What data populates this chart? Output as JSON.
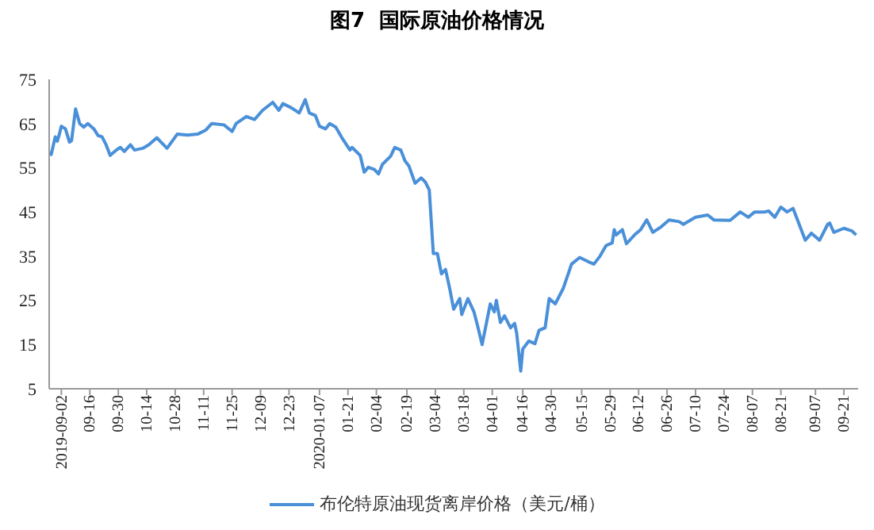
{
  "chart_data": {
    "type": "line",
    "title": "图7  国际原油价格情况",
    "legend": "bottom",
    "marker": "none",
    "line_style": "solid",
    "xlim": [
      "2019-08-27",
      "2020-09-28"
    ],
    "xticks": [
      {
        "value": "2019-09-02",
        "label": "2019-09-02"
      },
      {
        "value": "2019-09-16",
        "label": "09-16"
      },
      {
        "value": "2019-09-30",
        "label": "09-30"
      },
      {
        "value": "2019-10-14",
        "label": "10-14"
      },
      {
        "value": "2019-10-28",
        "label": "10-28"
      },
      {
        "value": "2019-11-11",
        "label": "11-11"
      },
      {
        "value": "2019-11-25",
        "label": "11-25"
      },
      {
        "value": "2019-12-09",
        "label": "12-09"
      },
      {
        "value": "2019-12-23",
        "label": "12-23"
      },
      {
        "value": "2020-01-07",
        "label": "2020-01-07"
      },
      {
        "value": "2020-01-21",
        "label": "01-21"
      },
      {
        "value": "2020-02-04",
        "label": "02-04"
      },
      {
        "value": "2020-02-19",
        "label": "02-19"
      },
      {
        "value": "2020-03-04",
        "label": "03-04"
      },
      {
        "value": "2020-03-18",
        "label": "03-18"
      },
      {
        "value": "2020-04-01",
        "label": "04-01"
      },
      {
        "value": "2020-04-16",
        "label": "04-16"
      },
      {
        "value": "2020-04-30",
        "label": "04-30"
      },
      {
        "value": "2020-05-15",
        "label": "05-15"
      },
      {
        "value": "2020-05-29",
        "label": "05-29"
      },
      {
        "value": "2020-06-12",
        "label": "06-12"
      },
      {
        "value": "2020-06-26",
        "label": "06-26"
      },
      {
        "value": "2020-07-10",
        "label": "07-10"
      },
      {
        "value": "2020-07-24",
        "label": "07-24"
      },
      {
        "value": "2020-08-07",
        "label": "08-07"
      },
      {
        "value": "2020-08-21",
        "label": "08-21"
      },
      {
        "value": "2020-09-07",
        "label": "09-07"
      },
      {
        "value": "2020-09-21",
        "label": "09-21"
      }
    ],
    "ylim": [
      5,
      75
    ],
    "yticks": [
      5,
      15,
      25,
      35,
      45,
      55,
      65,
      75
    ],
    "x": [
      "2019-08-27",
      "2019-08-28",
      "2019-08-30",
      "2019-08-31",
      "2019-09-01",
      "2019-09-02",
      "2019-09-04",
      "2019-09-06",
      "2019-09-07",
      "2019-09-09",
      "2019-09-11",
      "2019-09-13",
      "2019-09-15",
      "2019-09-18",
      "2019-09-20",
      "2019-09-22",
      "2019-09-24",
      "2019-09-26",
      "2019-09-29",
      "2019-10-01",
      "2019-10-03",
      "2019-10-06",
      "2019-10-08",
      "2019-10-12",
      "2019-10-15",
      "2019-10-19",
      "2019-10-21",
      "2019-10-24",
      "2019-10-29",
      "2019-11-03",
      "2019-11-08",
      "2019-11-12",
      "2019-11-15",
      "2019-11-21",
      "2019-11-25",
      "2019-11-27",
      "2019-12-02",
      "2019-12-06",
      "2019-12-10",
      "2019-12-15",
      "2019-12-18",
      "2019-12-20",
      "2019-12-24",
      "2019-12-28",
      "2019-12-31",
      "2020-01-02",
      "2020-01-05",
      "2020-01-07",
      "2020-01-10",
      "2020-01-12",
      "2020-01-15",
      "2020-01-18",
      "2020-01-22",
      "2020-01-23",
      "2020-01-27",
      "2020-01-29",
      "2020-01-31",
      "2020-02-03",
      "2020-02-05",
      "2020-02-07",
      "2020-02-11",
      "2020-02-13",
      "2020-02-16",
      "2020-02-18",
      "2020-02-20",
      "2020-02-23",
      "2020-02-26",
      "2020-02-28",
      "2020-03-01",
      "2020-03-03",
      "2020-03-05",
      "2020-03-07",
      "2020-03-09",
      "2020-03-11",
      "2020-03-13",
      "2020-03-16",
      "2020-03-17",
      "2020-03-20",
      "2020-03-23",
      "2020-03-25",
      "2020-03-27",
      "2020-03-31",
      "2020-04-02",
      "2020-04-03",
      "2020-04-05",
      "2020-04-07",
      "2020-04-10",
      "2020-04-12",
      "2020-04-13",
      "2020-04-15",
      "2020-04-16",
      "2020-04-19",
      "2020-04-22",
      "2020-04-24",
      "2020-04-27",
      "2020-04-29",
      "2020-05-02",
      "2020-05-06",
      "2020-05-10",
      "2020-05-14",
      "2020-05-18",
      "2020-05-21",
      "2020-05-24",
      "2020-05-27",
      "2020-05-30",
      "2020-05-31",
      "2020-06-01",
      "2020-06-04",
      "2020-06-06",
      "2020-06-10",
      "2020-06-13",
      "2020-06-16",
      "2020-06-19",
      "2020-06-23",
      "2020-06-27",
      "2020-07-02",
      "2020-07-04",
      "2020-07-10",
      "2020-07-16",
      "2020-07-19",
      "2020-07-27",
      "2020-08-01",
      "2020-08-05",
      "2020-08-08",
      "2020-08-13",
      "2020-08-15",
      "2020-08-18",
      "2020-08-21",
      "2020-08-24",
      "2020-08-27",
      "2020-08-30",
      "2020-08-31",
      "2020-09-02",
      "2020-09-05",
      "2020-09-09",
      "2020-09-13",
      "2020-09-14",
      "2020-09-16",
      "2020-09-21",
      "2020-09-25",
      "2020-09-27"
    ],
    "series": [
      {
        "name": "布伦特原油现货离岸价格（美元/桶）",
        "color": "#4a90d9",
        "values": [
          58.4,
          58,
          62,
          61,
          62.6,
          64.4,
          63.8,
          60.8,
          61.1,
          68.3,
          65,
          64.2,
          65,
          63.8,
          62.3,
          62,
          60.2,
          57.8,
          59,
          59.6,
          58.7,
          60.2,
          59,
          59.4,
          60.2,
          61.8,
          60.8,
          59.4,
          62.6,
          62.4,
          62.6,
          63.5,
          65,
          64.7,
          63.2,
          65,
          66.6,
          65.9,
          68,
          69.8,
          68,
          69.5,
          68.6,
          67.4,
          70.4,
          67.4,
          66.8,
          64.4,
          63.8,
          65,
          64.2,
          61.8,
          59,
          59.6,
          57.8,
          54,
          55.1,
          54.6,
          53.6,
          55.8,
          57.6,
          59.6,
          59,
          56.6,
          55.4,
          51.5,
          52.7,
          51.8,
          50,
          35.6,
          35.6,
          31,
          32,
          27.8,
          23,
          25.4,
          21.8,
          25.4,
          22.4,
          18.8,
          15,
          24.2,
          22.4,
          25,
          20,
          21.5,
          18.8,
          19.8,
          17.6,
          9,
          14,
          15.8,
          15.2,
          18.2,
          18.8,
          25.4,
          24.2,
          27.8,
          33.2,
          34.7,
          33.8,
          33.2,
          35,
          37.4,
          38,
          41,
          39.8,
          41,
          37.8,
          39.8,
          41,
          43.2,
          40.4,
          41.6,
          43.2,
          42.8,
          42.2,
          43.8,
          44.3,
          43.2,
          43.1,
          45,
          43.8,
          45,
          45,
          45.2,
          43.8,
          46.1,
          45,
          45.8,
          42.2,
          41,
          38.6,
          40.2,
          38.6,
          42.2,
          42.5,
          40.4,
          41.3,
          40.7,
          39.8
        ]
      }
    ]
  }
}
